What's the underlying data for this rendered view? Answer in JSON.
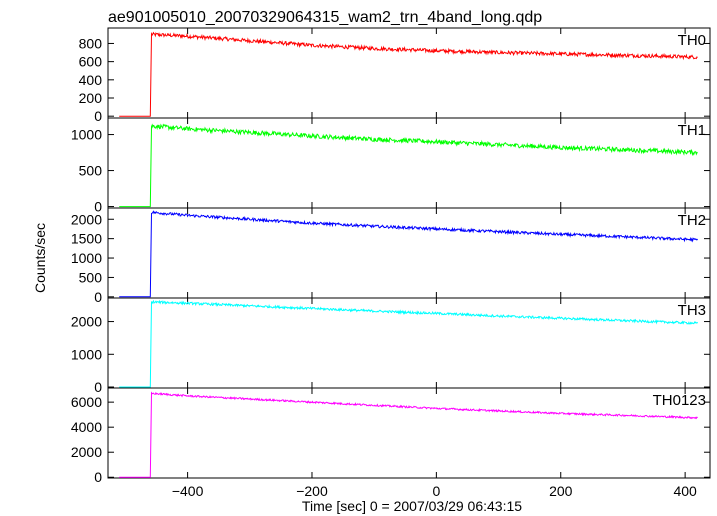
{
  "title": "ae901005010_20070329064315_wam2_trn_4band_long.qdp",
  "ylabel": "Counts/sec",
  "xlabel": "Time [sec] 0 = 2007/03/29 06:43:15",
  "x_ticks": [
    "−400",
    "−200",
    "0",
    "200",
    "400"
  ],
  "chart_data": {
    "type": "line",
    "title": "ae901005010_20070329064315_wam2_trn_4band_long.qdp",
    "xlabel": "Time [sec] 0 = 2007/03/29 06:43:15",
    "ylabel": "Counts/sec",
    "xlim": [
      -528,
      440
    ],
    "x_ticks": [
      -400,
      -200,
      0,
      200,
      400
    ],
    "panels": [
      {
        "name": "TH0",
        "color": "#ff0000",
        "ylim": [
          -20,
          970
        ],
        "y_ticks": [
          0,
          200,
          400,
          600,
          800
        ],
        "y_tick_labels": [
          "0",
          "200",
          "400",
          "600",
          "800"
        ],
        "series": [
          {
            "name": "TH0",
            "x": [
              -510,
              -460,
              -458,
              -400,
              -300,
              -200,
              -100,
              0,
              100,
              200,
              300,
              420
            ],
            "values": [
              0,
              0,
              900,
              880,
              830,
              780,
              745,
              720,
              700,
              685,
              670,
              650
            ],
            "noise": 20
          }
        ]
      },
      {
        "name": "TH1",
        "color": "#00ff00",
        "ylim": [
          -20,
          1230
        ],
        "y_ticks": [
          0,
          500,
          1000
        ],
        "y_tick_labels": [
          "0",
          "500",
          "1000"
        ],
        "series": [
          {
            "name": "TH1",
            "x": [
              -510,
              -460,
              -458,
              -400,
              -300,
              -200,
              -100,
              0,
              100,
              200,
              300,
              420
            ],
            "values": [
              0,
              0,
              1120,
              1080,
              1030,
              980,
              935,
              900,
              860,
              820,
              790,
              750
            ],
            "noise": 30
          }
        ]
      },
      {
        "name": "TH2",
        "color": "#0000ff",
        "ylim": [
          -30,
          2290
        ],
        "y_ticks": [
          0,
          500,
          1000,
          1500,
          2000
        ],
        "y_tick_labels": [
          "0",
          "500",
          "1000",
          "1500",
          "2000"
        ],
        "series": [
          {
            "name": "TH2",
            "x": [
              -510,
              -460,
              -458,
              -400,
              -300,
              -200,
              -100,
              0,
              100,
              200,
              300,
              420
            ],
            "values": [
              0,
              0,
              2180,
              2100,
              2000,
              1900,
              1820,
              1750,
              1680,
              1610,
              1550,
              1470
            ],
            "noise": 35
          }
        ]
      },
      {
        "name": "TH3",
        "color": "#00ffff",
        "ylim": [
          -30,
          2720
        ],
        "y_ticks": [
          0,
          1000,
          2000
        ],
        "y_tick_labels": [
          "0",
          "1000",
          "2000"
        ],
        "series": [
          {
            "name": "TH3",
            "x": [
              -510,
              -460,
              -458,
              -400,
              -300,
              -200,
              -100,
              0,
              100,
              200,
              300,
              420
            ],
            "values": [
              0,
              0,
              2600,
              2560,
              2480,
              2400,
              2320,
              2250,
              2170,
              2100,
              2030,
              1950
            ],
            "noise": 35
          }
        ]
      },
      {
        "name": "TH0123",
        "color": "#ff00ff",
        "ylim": [
          -60,
          7130
        ],
        "y_ticks": [
          0,
          2000,
          4000,
          6000
        ],
        "y_tick_labels": [
          "0",
          "2000",
          "4000",
          "6000"
        ],
        "series": [
          {
            "name": "TH0123",
            "x": [
              -510,
              -460,
              -458,
              -400,
              -300,
              -200,
              -100,
              0,
              100,
              200,
              300,
              420
            ],
            "values": [
              0,
              0,
              6700,
              6500,
              6250,
              6000,
              5750,
              5500,
              5300,
              5100,
              4950,
              4750
            ],
            "noise": 70
          }
        ]
      }
    ]
  }
}
